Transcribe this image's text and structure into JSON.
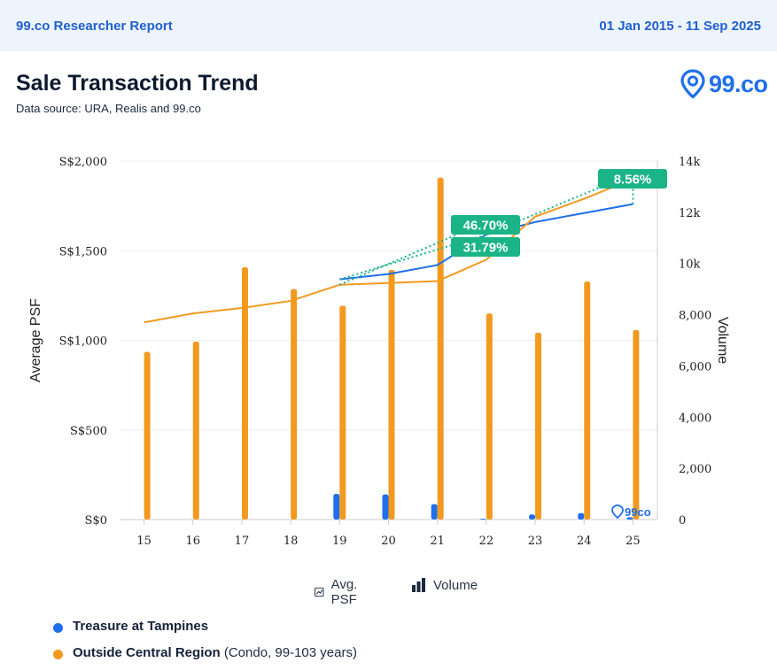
{
  "header": {
    "brand": "99.co Researcher Report",
    "date_range": "01 Jan 2015 - 11 Sep 2025"
  },
  "title": "Sale Transaction Trend",
  "subtitle": "Data source: URA, Realis and 99.co",
  "logo_text": "99.co",
  "watermark_text": "99co",
  "toggles": {
    "avg_psf": "Avg. PSF",
    "volume": "Volume"
  },
  "legend": [
    {
      "name": "Treasure at Tampines",
      "detail": "",
      "color": "#1f6fea"
    },
    {
      "name": "Outside Central Region",
      "detail": "(Condo, 99-103 years)",
      "color": "#f29a1f"
    }
  ],
  "chart_data": {
    "type": "bar",
    "categories": [
      "15",
      "16",
      "17",
      "18",
      "19",
      "20",
      "21",
      "22",
      "23",
      "24",
      "25"
    ],
    "y_left": {
      "label": "Average PSF",
      "ticks": [
        "S$0",
        "S$500",
        "S$1,000",
        "S$1,500",
        "S$2,000"
      ],
      "range": [
        0,
        2000
      ]
    },
    "y_right": {
      "label": "Volume",
      "ticks": [
        "0",
        "2,000",
        "4,000",
        "6,000",
        "8,000",
        "10k",
        "12k",
        "14k"
      ],
      "range": [
        0,
        14000
      ]
    },
    "series": [
      {
        "name": "Treasure at Tampines",
        "color": "#1f6fea",
        "volume": [
          null,
          null,
          null,
          null,
          1000,
          980,
          600,
          30,
          200,
          250,
          90
        ],
        "avg_psf": [
          null,
          null,
          null,
          null,
          1340,
          1370,
          1420,
          1590,
          1660,
          1710,
          1760
        ]
      },
      {
        "name": "Outside Central Region",
        "color": "#f29a1f",
        "volume": [
          6550,
          6950,
          9850,
          9000,
          8350,
          9750,
          13350,
          8050,
          7300,
          9300,
          7400
        ],
        "avg_psf": [
          1100,
          1150,
          1180,
          1220,
          1310,
          1320,
          1330,
          1450,
          1690,
          1790,
          1900
        ]
      }
    ],
    "annotations": [
      {
        "label": "46.70%",
        "x": "22",
        "from_x": "19",
        "from_psf": 1310,
        "to_psf": 1590,
        "trend_to_psf": 1660
      },
      {
        "label": "31.79%",
        "x": "22",
        "from_x": "19",
        "from_psf": 1340,
        "to_psf": 1590,
        "trend_to_psf": 1590
      },
      {
        "label": "8.56%",
        "x": "25",
        "from_x": "22",
        "from_psf": 1590,
        "to_psf": 1760,
        "trend_to_psf": 1930
      }
    ],
    "grid": true
  }
}
